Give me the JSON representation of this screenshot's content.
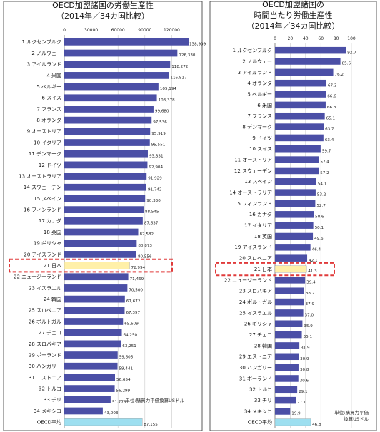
{
  "colors": {
    "bar": "#4b4fa6",
    "bar_highlight": "#fff0a8",
    "bar_average": "#9ddff0",
    "highlight_box": "#e03a3a",
    "panel_border": "#333333"
  },
  "chart_data": [
    {
      "type": "bar",
      "orientation": "horizontal",
      "title_lines": [
        "OECD加盟諸国の労働生産性",
        "（2014年／34カ国比較）"
      ],
      "xlim": [
        0,
        150000
      ],
      "x_ticks": [
        0,
        30000,
        60000,
        90000,
        120000
      ],
      "x_tick_labels": [
        "0",
        "30000",
        "60000",
        "90000",
        "120000"
      ],
      "grid": true,
      "note": "単位:購買力平価換算USドル",
      "highlight_index": 20,
      "average_index": 34,
      "categories": [
        "1 ルクセンブルク",
        "2 ノルウェー",
        "3 アイルランド",
        "4 米国",
        "5 ベルギー",
        "6 スイス",
        "7 フランス",
        "8 オランダ",
        "9 オーストリア",
        "10 イタリア",
        "11 デンマーク",
        "12 ドイツ",
        "13 オーストラリア",
        "14 スウェーデン",
        "15 スペイン",
        "16 フィンランド",
        "17 カナダ",
        "18 英国",
        "19 ギリシャ",
        "20 アイスランド",
        "21 日本",
        "22 ニュージーランド",
        "23 イスラエル",
        "24 韓国",
        "25 スロベニア",
        "26 ポルトガル",
        "27 チェコ",
        "28 スロバキア",
        "29 ポーランド",
        "30 ハンガリー",
        "31 エストニア",
        "32 トルコ",
        "33 チリ",
        "34 メキシコ",
        "OECD平均"
      ],
      "values": [
        138909,
        126330,
        118272,
        116817,
        105194,
        103378,
        99680,
        97536,
        95919,
        95551,
        93331,
        92904,
        91929,
        91742,
        90330,
        88545,
        87637,
        82582,
        80873,
        80556,
        72994,
        71469,
        70500,
        67672,
        67397,
        65609,
        64250,
        63251,
        59605,
        59441,
        56654,
        56299,
        51776,
        43003,
        87155
      ],
      "value_labels": [
        "138,909",
        "126,330",
        "118,272",
        "116,817",
        "105,194",
        "103,378",
        "99,680",
        "97,536",
        "95,919",
        "95,551",
        "93,331",
        "92,904",
        "91,929",
        "91,742",
        "90,330",
        "88,545",
        "87,637",
        "82,582",
        "80,873",
        "80,556",
        "72,994",
        "71,469",
        "70,500",
        "67,672",
        "67,397",
        "65,609",
        "64,250",
        "63,251",
        "59,605",
        "59,441",
        "56,654",
        "56,299",
        "51,776",
        "43,003",
        "87,155"
      ]
    },
    {
      "type": "bar",
      "orientation": "horizontal",
      "title_lines": [
        "OECD加盟諸国の",
        "時間当たり労働生産性",
        "（2014年／34カ国比較）"
      ],
      "xlim": [
        0,
        100
      ],
      "x_ticks": [
        0,
        20,
        40,
        60,
        80,
        100
      ],
      "x_tick_labels": [
        "0",
        "20",
        "40",
        "60",
        "80",
        "100"
      ],
      "grid": true,
      "note_lines": [
        "単位:購買力平価",
        "換算USドル"
      ],
      "highlight_index": 20,
      "average_index": 34,
      "categories": [
        "1 ルクセンブルク",
        "2 ノルウェー",
        "3 アイルランド",
        "4 オランダ",
        "5 ベルギー",
        "6 米国",
        "7 フランス",
        "8 デンマーク",
        "9 ドイツ",
        "10 スイス",
        "11 オーストリア",
        "12 スウェーデン",
        "13 スペイン",
        "14 オーストラリア",
        "15 フィンランド",
        "16 カナダ",
        "17 イタリア",
        "18 英国",
        "19 アイスランド",
        "20 スロベニア",
        "21 日本",
        "22 ニュージーランド",
        "23 スロバキア",
        "24 ポルトガル",
        "25 イスラエル",
        "26 ギリシャ",
        "27 チェコ",
        "28 韓国",
        "29 エストニア",
        "30 ハンガリー",
        "31 ポーランド",
        "32 トルコ",
        "33 チリ",
        "34 メキシコ",
        "OECD平均"
      ],
      "values": [
        92.7,
        85.6,
        76.2,
        67.3,
        66.6,
        66.3,
        65.1,
        63.7,
        63.4,
        59.7,
        57.4,
        57.2,
        54.1,
        53.2,
        52.7,
        50.6,
        50.1,
        49.6,
        46.4,
        42.1,
        41.3,
        39.4,
        38.2,
        37.9,
        37.0,
        35.9,
        35.1,
        31.9,
        30.9,
        30.8,
        30.6,
        29.1,
        27.1,
        19.9,
        46.8
      ],
      "value_labels": [
        "92.7",
        "85.6",
        "76.2",
        "67.3",
        "66.6",
        "66.3",
        "65.1",
        "63.7",
        "63.4",
        "59.7",
        "57.4",
        "57.2",
        "54.1",
        "53.2",
        "52.7",
        "50.6",
        "50.1",
        "49.6",
        "46.4",
        "42.1",
        "41.3",
        "39.4",
        "38.2",
        "37.9",
        "37.0",
        "35.9",
        "35.1",
        "31.9",
        "30.9",
        "30.8",
        "30.6",
        "29.1",
        "27.1",
        "19.9",
        "46.8"
      ]
    }
  ]
}
